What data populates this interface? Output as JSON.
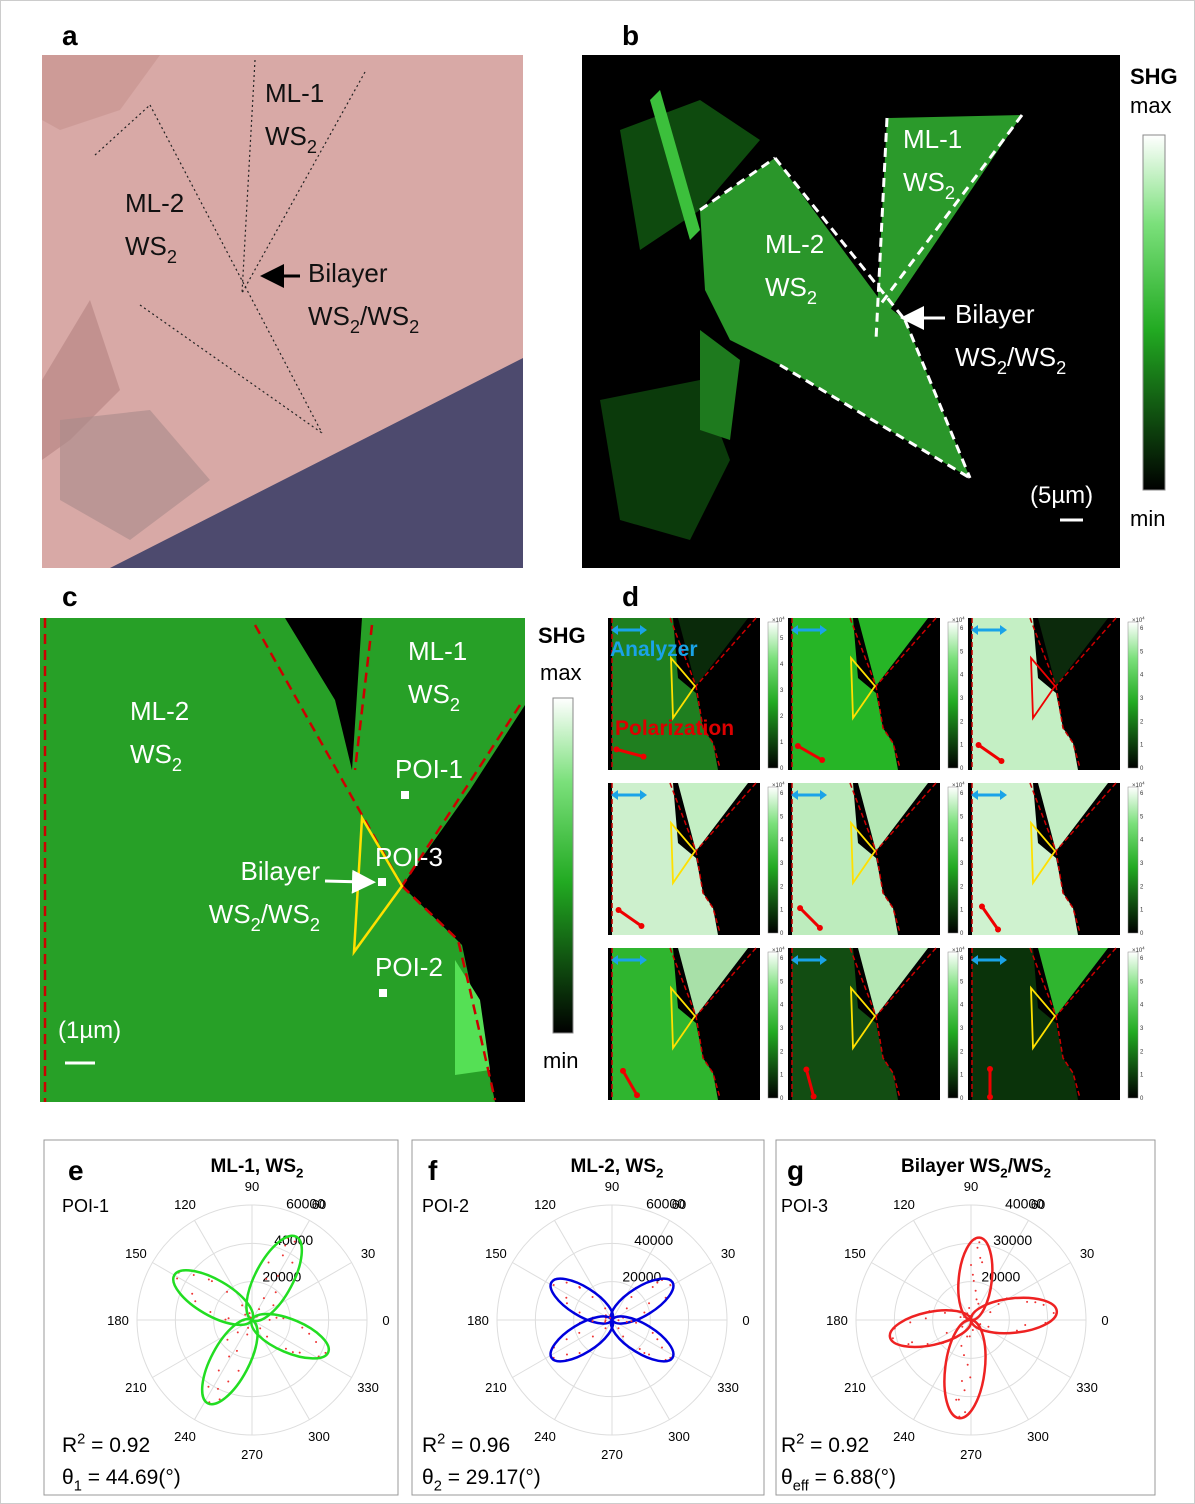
{
  "figure": {
    "a": {
      "letter": "a",
      "labels": [
        {
          "lines": [
            [
              "ML-1"
            ],
            [
              "WS",
              {
                "sub": "2"
              }
            ]
          ]
        },
        {
          "lines": [
            [
              "ML-2"
            ],
            [
              "WS",
              {
                "sub": "2"
              }
            ]
          ]
        },
        {
          "lines": [
            [
              "Bilayer"
            ],
            [
              "WS",
              {
                "sub": "2"
              },
              "/WS",
              {
                "sub": "2"
              }
            ]
          ]
        }
      ]
    },
    "b": {
      "letter": "b",
      "labels": [
        {
          "lines": [
            [
              "ML-1"
            ],
            [
              "WS",
              {
                "sub": "2"
              }
            ]
          ]
        },
        {
          "lines": [
            [
              "ML-2"
            ],
            [
              "WS",
              {
                "sub": "2"
              }
            ]
          ]
        },
        {
          "lines": [
            [
              "Bilayer"
            ],
            [
              "WS",
              {
                "sub": "2"
              },
              "/WS",
              {
                "sub": "2"
              }
            ]
          ]
        }
      ],
      "colorbar": {
        "title": "SHG",
        "max": "max",
        "min": "min"
      },
      "scale": "(5µm)"
    },
    "c": {
      "letter": "c",
      "labels": [
        {
          "lines": [
            [
              "ML-1"
            ],
            [
              "WS",
              {
                "sub": "2"
              }
            ]
          ]
        },
        {
          "lines": [
            [
              "ML-2"
            ],
            [
              "WS",
              {
                "sub": "2"
              }
            ]
          ]
        },
        {
          "lines": [
            [
              "POI-1"
            ]
          ]
        },
        {
          "lines": [
            [
              "POI-3"
            ]
          ]
        },
        {
          "lines": [
            [
              "Bilayer"
            ],
            [
              "WS",
              {
                "sub": "2"
              },
              "/WS",
              {
                "sub": "2"
              }
            ]
          ]
        },
        {
          "lines": [
            [
              "POI-2"
            ]
          ]
        }
      ],
      "colorbar": {
        "title": "SHG",
        "max": "max",
        "min": "min"
      },
      "scale": "(1µm)"
    },
    "d": {
      "letter": "d",
      "analyzer": "Analyzer",
      "polarization": "Polarization",
      "multiplier": {
        "lines": [
          [
            "×10",
            {
              "sup": "4"
            }
          ]
        ]
      },
      "cells": [
        {
          "ticks": [
            0,
            1,
            2,
            3,
            4,
            5
          ]
        },
        {
          "ticks": [
            0,
            1,
            2,
            3,
            4,
            5,
            6
          ]
        },
        {
          "ticks": [
            0,
            1,
            2,
            3,
            4,
            5,
            6
          ]
        },
        {
          "ticks": [
            0,
            1,
            2,
            3,
            4,
            5,
            6
          ]
        },
        {
          "ticks": [
            0,
            1,
            2,
            3,
            4,
            5,
            6
          ]
        },
        {
          "ticks": [
            0,
            1,
            2,
            3,
            4,
            5,
            6
          ]
        },
        {
          "ticks": [
            0,
            1,
            2,
            3,
            4,
            5,
            6
          ]
        },
        {
          "ticks": [
            0,
            1,
            2,
            3,
            4,
            5,
            6
          ]
        },
        {
          "ticks": [
            0,
            1,
            2,
            3,
            4,
            5,
            6
          ]
        }
      ]
    },
    "e": {
      "letter": "e",
      "title": {
        "lines": [
          [
            "ML-1, WS",
            {
              "sub": "2"
            }
          ]
        ]
      },
      "poi": "POI-1",
      "angles": [
        0,
        30,
        60,
        90,
        120,
        150,
        180,
        210,
        240,
        270,
        300,
        330
      ],
      "radial_ticks": [
        20000,
        40000,
        60000
      ],
      "fit": {
        "lines": [
          [
            "R",
            {
              "sup": "2"
            },
            " = 0.92"
          ],
          [
            "θ",
            {
              "sub": "1"
            },
            " = 44.69(°)"
          ]
        ]
      }
    },
    "f": {
      "letter": "f",
      "title": {
        "lines": [
          [
            "ML-2, WS",
            {
              "sub": "2"
            }
          ]
        ]
      },
      "poi": "POI-2",
      "angles": [
        0,
        30,
        60,
        90,
        120,
        150,
        180,
        210,
        240,
        270,
        300,
        330
      ],
      "radial_ticks": [
        20000,
        40000,
        60000
      ],
      "fit": {
        "lines": [
          [
            "R",
            {
              "sup": "2"
            },
            " = 0.96"
          ],
          [
            "θ",
            {
              "sub": "2"
            },
            " = 29.17(°)"
          ]
        ]
      }
    },
    "g": {
      "letter": "g",
      "title": {
        "lines": [
          [
            "Bilayer WS",
            {
              "sub": "2"
            },
            "/WS",
            {
              "sub": "2"
            }
          ]
        ]
      },
      "poi": "POI-3",
      "angles": [
        0,
        30,
        60,
        90,
        120,
        150,
        180,
        210,
        240,
        270,
        300,
        330
      ],
      "radial_ticks": [
        20000,
        30000,
        40000
      ],
      "fit": {
        "lines": [
          [
            "R",
            {
              "sup": "2"
            },
            " = 0.92"
          ],
          [
            "θ",
            {
              "sub": "eff"
            },
            " = 6.88(°)"
          ]
        ]
      }
    }
  }
}
